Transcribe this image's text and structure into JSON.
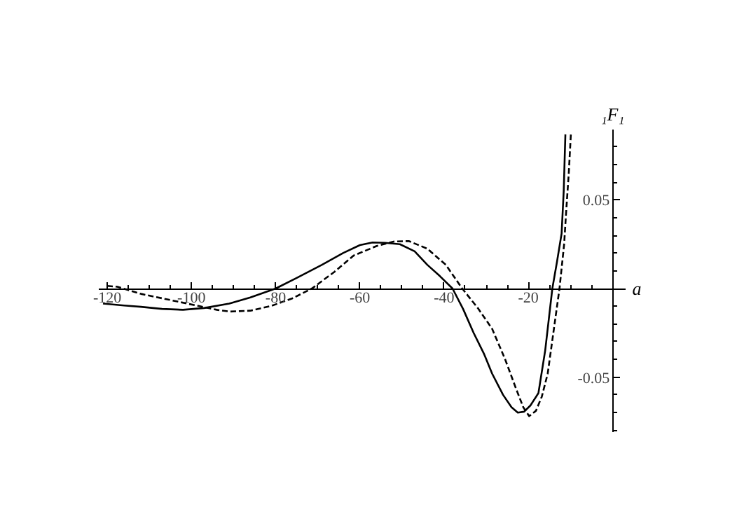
{
  "chart_data": {
    "type": "line",
    "xlabel": "a",
    "ylabel": "₁F₁",
    "xlim": [
      -122,
      3
    ],
    "ylim": [
      -0.081,
      0.09
    ],
    "xticks": [
      -120,
      {
        "value": -115,
        "label": null
      },
      {
        "value": -110,
        "label": null
      },
      {
        "value": -105,
        "label": null
      },
      -100,
      {
        "value": -95,
        "label": null
      },
      {
        "value": -90,
        "label": null
      },
      {
        "value": -85,
        "label": null
      },
      -80,
      {
        "value": -75,
        "label": null
      },
      {
        "value": -70,
        "label": null
      },
      {
        "value": -65,
        "label": null
      },
      -60,
      {
        "value": -55,
        "label": null
      },
      {
        "value": -50,
        "label": null
      },
      {
        "value": -45,
        "label": null
      },
      -40,
      {
        "value": -35,
        "label": null
      },
      {
        "value": -30,
        "label": null
      },
      {
        "value": -25,
        "label": null
      },
      -20,
      {
        "value": -15,
        "label": null
      },
      {
        "value": -10,
        "label": null
      },
      {
        "value": -5,
        "label": null
      }
    ],
    "yticks": [
      {
        "value": -0.08,
        "label": null
      },
      {
        "value": -0.07,
        "label": null
      },
      {
        "value": -0.06,
        "label": null
      },
      -0.05,
      {
        "value": -0.04,
        "label": null
      },
      {
        "value": -0.03,
        "label": null
      },
      {
        "value": -0.02,
        "label": null
      },
      {
        "value": -0.01,
        "label": null
      },
      {
        "value": 0.01,
        "label": null
      },
      {
        "value": 0.02,
        "label": null
      },
      {
        "value": 0.03,
        "label": null
      },
      {
        "value": 0.04,
        "label": null
      },
      0.05,
      {
        "value": 0.06,
        "label": null
      },
      {
        "value": 0.07,
        "label": null
      },
      {
        "value": 0.08,
        "label": null
      }
    ],
    "grid": false,
    "marker": "none",
    "series": [
      {
        "color": "#000000",
        "line_style": "solid",
        "x": [
          -121,
          -116,
          -112,
          -107,
          -102,
          -97,
          -91,
          -86,
          -80,
          -75,
          -69,
          -64,
          -60,
          -57,
          -54,
          -50.5,
          -47,
          -44,
          -41,
          -38,
          -35.5,
          -33,
          -30.5,
          -28.6,
          -26,
          -24,
          -22.5,
          -21,
          -19.5,
          -17.6,
          -16,
          -14.3,
          -13.2,
          -12.1,
          -11.6,
          -11.2
        ],
        "values": [
          -0.0085,
          -0.0096,
          -0.0103,
          -0.0115,
          -0.012,
          -0.011,
          -0.0085,
          -0.005,
          0,
          0.006,
          0.0134,
          0.02,
          0.0245,
          0.026,
          0.0258,
          0.025,
          0.021,
          0.0134,
          0.007,
          0,
          -0.0115,
          -0.025,
          -0.037,
          -0.048,
          -0.06,
          -0.067,
          -0.07,
          -0.0695,
          -0.066,
          -0.059,
          -0.035,
          0,
          0.015,
          0.031,
          0.055,
          0.087
        ]
      },
      {
        "color": "#000000",
        "line_style": "dashed",
        "x": [
          -120,
          -117.6,
          -112,
          -105,
          -98,
          -94,
          -91,
          -86,
          -81,
          -76,
          -71.4,
          -66,
          -61.5,
          -56,
          -52,
          -48.4,
          -44,
          -39.6,
          -35.7,
          -32,
          -28.6,
          -25.5,
          -23,
          -21.2,
          -19.8,
          -18.2,
          -16.8,
          -15.4,
          -12.6,
          -11.5,
          -11,
          -10.4,
          -9.9
        ],
        "values": [
          0.0015,
          0.001,
          -0.003,
          -0.0065,
          -0.01,
          -0.012,
          -0.013,
          -0.0125,
          -0.0098,
          -0.0055,
          0,
          0.0095,
          0.0186,
          0.024,
          0.0265,
          0.0268,
          0.0225,
          0.0134,
          0,
          -0.011,
          -0.0227,
          -0.04,
          -0.056,
          -0.067,
          -0.072,
          -0.069,
          -0.061,
          -0.048,
          0,
          0.025,
          0.044,
          0.065,
          0.087
        ]
      }
    ]
  }
}
